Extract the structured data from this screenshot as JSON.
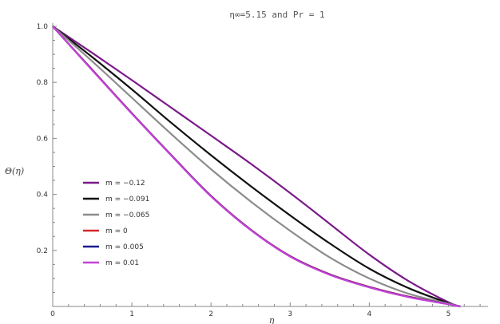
{
  "chart_data": {
    "type": "line",
    "title": "η∞=5.15 and Pr = 1",
    "xlabel": "η",
    "ylabel": "Θ(η)",
    "xlim": [
      0,
      5.5
    ],
    "ylim": [
      0,
      1.0
    ],
    "x_ticks": [
      "0",
      "1",
      "2",
      "3",
      "4",
      "5"
    ],
    "y_ticks": [
      "0.2",
      "0.4",
      "0.6",
      "0.8",
      "1.0"
    ],
    "grid": false,
    "legend_position": "left",
    "series": [
      {
        "name": "m = −0.12",
        "color": "#7b1a8a",
        "x": [
          0,
          0.5,
          1,
          1.5,
          2,
          2.5,
          3,
          3.5,
          4,
          4.5,
          5,
          5.15
        ],
        "y": [
          1.0,
          0.905,
          0.808,
          0.709,
          0.61,
          0.51,
          0.405,
          0.295,
          0.185,
          0.09,
          0.015,
          0.0
        ]
      },
      {
        "name": "m = −0.091",
        "color": "#111111",
        "x": [
          0,
          0.5,
          1,
          1.5,
          2,
          2.5,
          3,
          3.5,
          4,
          4.5,
          5,
          5.15
        ],
        "y": [
          1.0,
          0.89,
          0.775,
          0.655,
          0.54,
          0.43,
          0.325,
          0.225,
          0.135,
          0.065,
          0.012,
          0.0
        ]
      },
      {
        "name": "m = −0.065",
        "color": "#8c8c8c",
        "x": [
          0,
          0.5,
          1,
          1.5,
          2,
          2.5,
          3,
          3.5,
          4,
          4.5,
          5,
          5.15
        ],
        "y": [
          1.0,
          0.875,
          0.745,
          0.615,
          0.49,
          0.375,
          0.27,
          0.175,
          0.1,
          0.045,
          0.01,
          0.0
        ]
      },
      {
        "name": "m = 0",
        "color": "#d42a2a",
        "x": [
          0,
          0.5,
          1,
          1.5,
          2,
          2.5,
          3,
          3.5,
          4,
          4.5,
          5,
          5.15
        ],
        "y": [
          1.0,
          0.845,
          0.69,
          0.54,
          0.395,
          0.275,
          0.18,
          0.115,
          0.07,
          0.035,
          0.008,
          0.0
        ]
      },
      {
        "name": "m = 0.005",
        "color": "#1a1a8c",
        "x": [
          0,
          0.5,
          1,
          1.5,
          2,
          2.5,
          3,
          3.5,
          4,
          4.5,
          5,
          5.15
        ],
        "y": [
          1.0,
          0.844,
          0.689,
          0.539,
          0.394,
          0.274,
          0.179,
          0.114,
          0.069,
          0.034,
          0.008,
          0.0
        ]
      },
      {
        "name": "m = 0.01",
        "color": "#c542d8",
        "x": [
          0,
          0.5,
          1,
          1.5,
          2,
          2.5,
          3,
          3.5,
          4,
          4.5,
          5,
          5.15
        ],
        "y": [
          1.0,
          0.843,
          0.688,
          0.538,
          0.393,
          0.273,
          0.178,
          0.113,
          0.068,
          0.033,
          0.008,
          0.0
        ]
      }
    ]
  }
}
